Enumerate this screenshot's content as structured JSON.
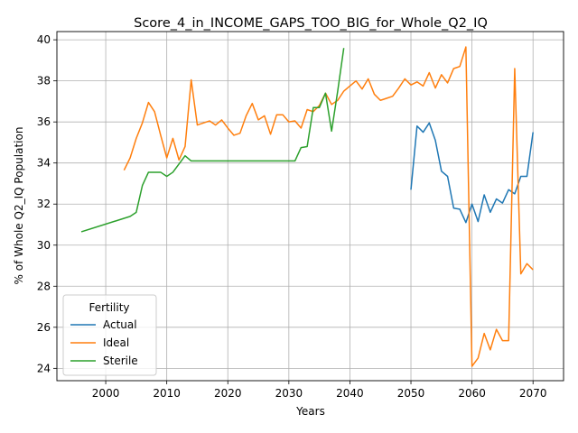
{
  "chart_data": {
    "type": "line",
    "title": "Score_4_in_INCOME_GAPS_TOO_BIG_for_Whole_Q2_IQ",
    "xlabel": "Years",
    "ylabel": "% of Whole Q2_IQ Population",
    "xlim": [
      1992,
      2075
    ],
    "ylim": [
      23.4,
      40.4
    ],
    "xticks": [
      2000,
      2010,
      2020,
      2030,
      2040,
      2050,
      2060,
      2070
    ],
    "yticks": [
      24,
      26,
      28,
      30,
      32,
      34,
      36,
      38,
      40
    ],
    "grid": true,
    "legend": {
      "title": "Fertility",
      "position": "lower-left"
    },
    "series": [
      {
        "name": "Actual",
        "color": "#1f77b4",
        "x": [
          2050,
          2051,
          2052,
          2053,
          2054,
          2055,
          2056,
          2057,
          2058,
          2059,
          2060,
          2061,
          2062,
          2063,
          2064,
          2065,
          2066,
          2067,
          2068,
          2069,
          2070
        ],
        "y": [
          32.7,
          35.8,
          35.5,
          35.95,
          35.1,
          33.6,
          33.35,
          31.8,
          31.75,
          31.1,
          32.0,
          31.15,
          32.45,
          31.6,
          32.25,
          32.05,
          32.7,
          32.5,
          33.35,
          33.35,
          35.5
        ]
      },
      {
        "name": "Ideal",
        "color": "#ff7f0e",
        "x": [
          2003,
          2004,
          2005,
          2006,
          2007,
          2008,
          2009,
          2010,
          2011,
          2012,
          2013,
          2014,
          2015,
          2016,
          2017,
          2018,
          2019,
          2020,
          2021,
          2022,
          2023,
          2024,
          2025,
          2026,
          2027,
          2028,
          2029,
          2030,
          2031,
          2032,
          2033,
          2034,
          2035,
          2036,
          2037,
          2038,
          2039,
          2040,
          2041,
          2042,
          2043,
          2044,
          2045,
          2046,
          2047,
          2048,
          2049,
          2050,
          2051,
          2052,
          2053,
          2054,
          2055,
          2056,
          2057,
          2058,
          2059,
          2060,
          2061,
          2062,
          2063,
          2064,
          2065,
          2066,
          2067,
          2068,
          2069,
          2070
        ],
        "y": [
          33.65,
          34.25,
          35.2,
          35.95,
          36.95,
          36.5,
          35.35,
          34.25,
          35.2,
          34.15,
          34.8,
          38.05,
          35.85,
          35.95,
          36.05,
          35.85,
          36.1,
          35.7,
          35.35,
          35.45,
          36.3,
          36.9,
          36.1,
          36.3,
          35.4,
          36.35,
          36.35,
          36.0,
          36.05,
          35.7,
          36.6,
          36.5,
          36.8,
          37.4,
          36.85,
          37.05,
          37.5,
          37.75,
          38.0,
          37.6,
          38.1,
          37.35,
          37.05,
          37.15,
          37.25,
          37.65,
          38.1,
          37.8,
          37.95,
          37.75,
          38.4,
          37.65,
          38.3,
          37.9,
          38.6,
          38.7,
          39.65,
          24.1,
          24.5,
          25.7,
          24.9,
          25.9,
          25.35,
          25.35,
          38.6,
          28.6,
          29.1,
          28.8
        ]
      },
      {
        "name": "Sterile",
        "color": "#2ca02c",
        "x": [
          1996,
          2004,
          2005,
          2006,
          2007,
          2008,
          2009,
          2010,
          2011,
          2012,
          2013,
          2014,
          2015,
          2016,
          2017,
          2018,
          2019,
          2020,
          2021,
          2022,
          2023,
          2024,
          2025,
          2026,
          2027,
          2028,
          2029,
          2030,
          2031,
          2032,
          2033,
          2034,
          2035,
          2036,
          2037,
          2038,
          2039
        ],
        "y": [
          30.65,
          31.4,
          31.6,
          32.9,
          33.55,
          33.55,
          33.55,
          33.35,
          33.55,
          33.95,
          34.35,
          34.1,
          34.1,
          34.1,
          34.1,
          34.1,
          34.1,
          34.1,
          34.1,
          34.1,
          34.1,
          34.1,
          34.1,
          34.1,
          34.1,
          34.1,
          34.1,
          34.1,
          34.1,
          34.75,
          34.8,
          36.7,
          36.7,
          37.4,
          35.55,
          37.5,
          39.6
        ]
      }
    ]
  }
}
